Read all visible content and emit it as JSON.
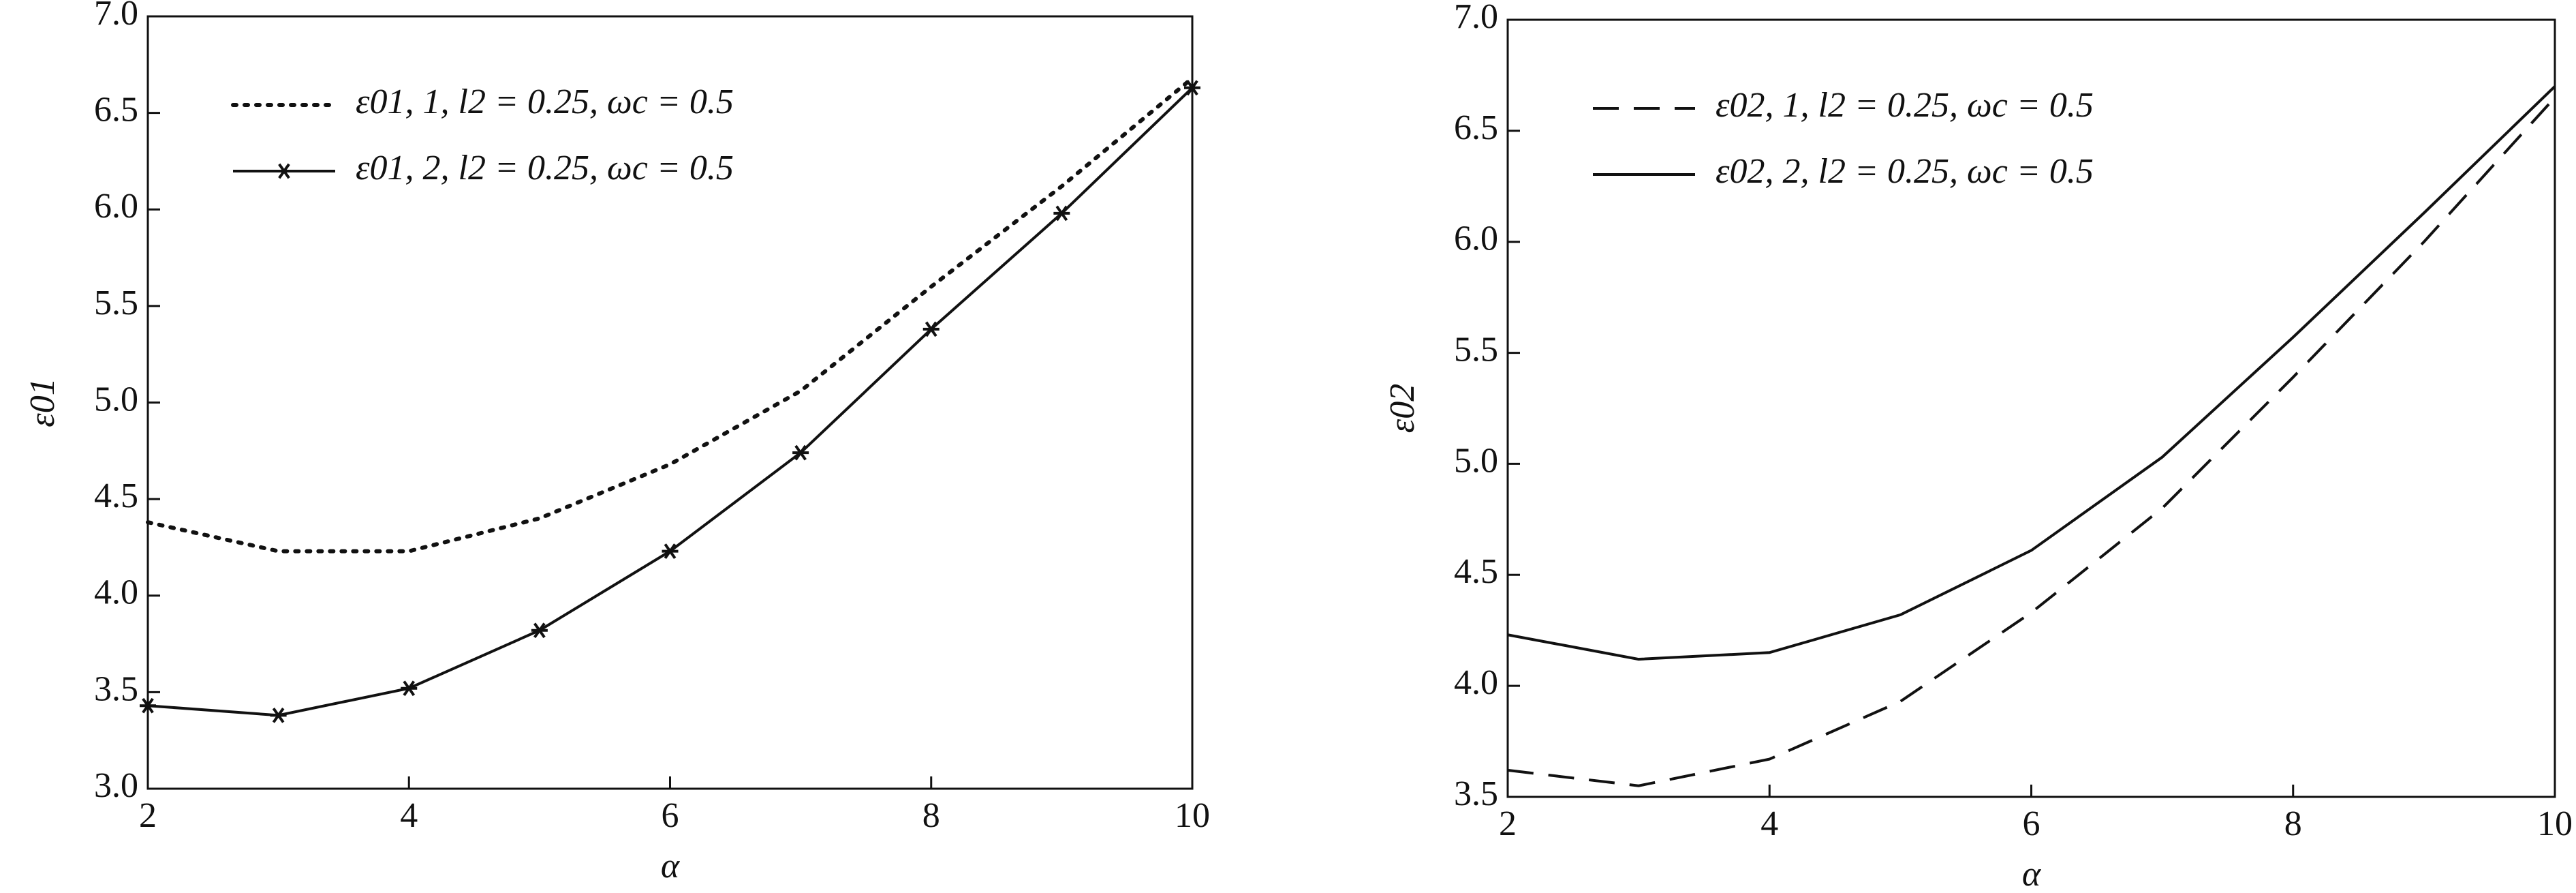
{
  "chart_data": [
    {
      "type": "line",
      "xlabel": "α",
      "ylabel": "ε01",
      "x": [
        2,
        3,
        4,
        5,
        6,
        7,
        8,
        9,
        10
      ],
      "xlim": [
        2,
        10
      ],
      "xticks": [
        2,
        4,
        6,
        8,
        10
      ],
      "ylim": [
        3,
        7
      ],
      "yticks": [
        {
          "value": 3,
          "label": "3.0"
        },
        3.5,
        {
          "value": 4,
          "label": "4.0"
        },
        4.5,
        {
          "value": 5,
          "label": "5.0"
        },
        5.5,
        {
          "value": 6,
          "label": "6.0"
        },
        6.5,
        {
          "value": 7,
          "label": "7.0"
        }
      ],
      "legend": "upper left",
      "series": [
        {
          "name": "ε01, 1, l2 = 0.25, ωc = 0.5",
          "color": "#111111",
          "style": "dotted",
          "values": [
            4.38,
            4.23,
            4.23,
            4.4,
            4.68,
            5.06,
            5.6,
            6.12,
            6.68
          ]
        },
        {
          "name": "ε01, 2, l2 = 0.25, ωc = 0.5",
          "color": "#111111",
          "style": "solid",
          "marker": "star",
          "values": [
            3.43,
            3.38,
            3.52,
            3.82,
            4.23,
            4.74,
            5.38,
            5.98,
            6.63
          ]
        }
      ]
    },
    {
      "type": "line",
      "xlabel": "α",
      "ylabel": "ε02",
      "x": [
        2,
        3,
        4,
        5,
        6,
        7,
        8,
        9,
        10
      ],
      "xlim": [
        2,
        10
      ],
      "xticks": [
        2,
        4,
        6,
        8,
        10
      ],
      "ylim": [
        3.5,
        7
      ],
      "yticks": [
        3.5,
        {
          "value": 4,
          "label": "4.0"
        },
        4.5,
        {
          "value": 5,
          "label": "5.0"
        },
        5.5,
        {
          "value": 6,
          "label": "6.0"
        },
        6.5,
        {
          "value": 7,
          "label": "7.0"
        }
      ],
      "legend": "upper left",
      "series": [
        {
          "name": "ε02, 1, l2 = 0.25, ωc = 0.5",
          "color": "#111111",
          "style": "dashed",
          "values": [
            3.62,
            3.55,
            3.67,
            3.93,
            4.33,
            4.8,
            5.39,
            6.0,
            6.65
          ]
        },
        {
          "name": "ε02, 2, l2 = 0.25, ωc = 0.5",
          "color": "#111111",
          "style": "solid",
          "values": [
            4.23,
            4.12,
            4.15,
            4.32,
            4.61,
            5.03,
            5.57,
            6.13,
            6.7
          ]
        }
      ]
    }
  ]
}
